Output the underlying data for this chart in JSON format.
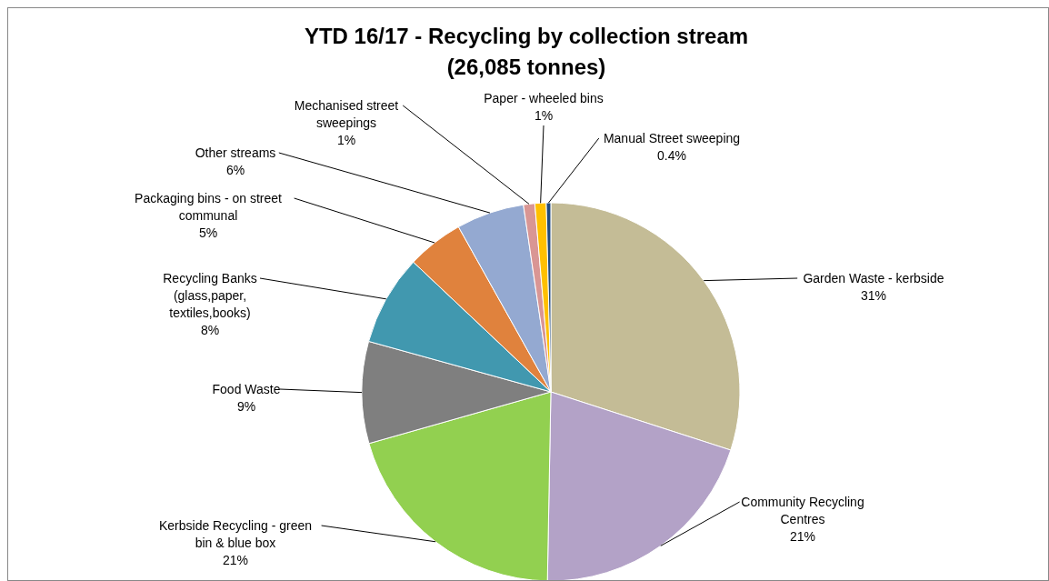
{
  "chart_data": {
    "type": "pie",
    "title": "YTD 16/17 - Recycling by collection stream\n(26,085 tonnes)",
    "categories": [
      "Garden Waste - kerbside",
      "Community Recycling Centres",
      "Kerbside Recycling - green bin & blue box",
      "Food Waste",
      "Recycling Banks (glass,paper, textiles,books)",
      "Packaging bins - on street communal",
      "Other streams",
      "Mechanised street sweepings",
      "Paper - wheeled bins",
      "Manual Street sweeping"
    ],
    "values": [
      31,
      21,
      21,
      9,
      8,
      5,
      6,
      1,
      1,
      0.4
    ],
    "value_labels": [
      "31%",
      "21%",
      "21%",
      "9%",
      "8%",
      "5%",
      "6%",
      "1%",
      "1%",
      "0.4%"
    ],
    "colors": [
      "#c4bc96",
      "#b3a2c7",
      "#92d050",
      "#7f7f7f",
      "#4198af",
      "#e0823d",
      "#94a9d1",
      "#d99694",
      "#ffc000",
      "#1f497d"
    ],
    "legend": false
  }
}
